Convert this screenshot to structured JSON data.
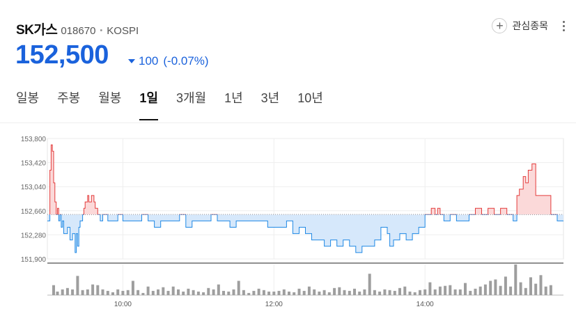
{
  "stock": {
    "name": "SK가스",
    "code": "018670",
    "market": "KOSPI",
    "price": "152,500",
    "change": "100",
    "change_pct": "(-0.07%)",
    "direction": "down"
  },
  "favorite_label": "관심종목",
  "tabs": [
    {
      "label": "일봉",
      "active": false
    },
    {
      "label": "주봉",
      "active": false
    },
    {
      "label": "월봉",
      "active": false
    },
    {
      "label": "1일",
      "active": true
    },
    {
      "label": "3개월",
      "active": false
    },
    {
      "label": "1년",
      "active": false
    },
    {
      "label": "3년",
      "active": false
    },
    {
      "label": "10년",
      "active": false
    }
  ],
  "colors": {
    "up": "#e33b3b",
    "down": "#1a62dc",
    "line_down": "#1e88e5"
  },
  "chart_data": {
    "type": "line",
    "baseline": 152600,
    "ylim": [
      151900,
      153800
    ],
    "y_ticks": [
      "153,800",
      "153,420",
      "153,040",
      "152,660",
      "152,280",
      "151,900"
    ],
    "x_ticks": [
      "10:00",
      "12:00",
      "14:00"
    ],
    "x_range_minutes": [
      540,
      950
    ],
    "price_series": {
      "times": [
        540,
        542,
        543,
        544,
        545,
        546,
        547,
        548,
        549,
        550,
        551,
        552,
        553,
        554,
        556,
        558,
        560,
        562,
        563,
        564,
        565,
        566,
        568,
        569,
        570,
        572,
        573,
        575,
        577,
        578,
        580,
        582,
        584,
        588,
        592,
        596,
        600,
        605,
        610,
        615,
        620,
        625,
        630,
        635,
        640,
        645,
        650,
        655,
        660,
        665,
        670,
        675,
        680,
        685,
        690,
        695,
        700,
        705,
        710,
        715,
        720,
        725,
        730,
        735,
        740,
        745,
        750,
        752,
        755,
        760,
        765,
        770,
        775,
        780,
        785,
        790,
        795,
        800,
        805,
        810,
        812,
        815,
        820,
        825,
        830,
        835,
        840,
        845,
        848,
        850,
        852,
        855,
        858,
        860,
        865,
        870,
        875,
        880,
        885,
        890,
        895,
        900,
        905,
        910,
        913,
        915,
        918,
        920,
        922,
        925,
        928,
        932,
        935,
        940,
        945,
        950
      ],
      "prices": [
        152500,
        153300,
        153700,
        153600,
        153100,
        152800,
        152600,
        152700,
        152500,
        152600,
        152400,
        152500,
        152300,
        152300,
        152400,
        152200,
        152300,
        152000,
        152300,
        152100,
        152400,
        152500,
        152600,
        152700,
        152800,
        152900,
        152800,
        152900,
        152800,
        152700,
        152600,
        152500,
        152600,
        152500,
        152500,
        152600,
        152500,
        152500,
        152500,
        152600,
        152500,
        152400,
        152500,
        152500,
        152500,
        152600,
        152400,
        152500,
        152500,
        152500,
        152600,
        152500,
        152500,
        152400,
        152500,
        152500,
        152500,
        152500,
        152500,
        152400,
        152400,
        152400,
        152500,
        152300,
        152400,
        152300,
        152200,
        152200,
        152200,
        152100,
        152200,
        152100,
        152200,
        152100,
        152000,
        152100,
        152100,
        152200,
        152400,
        152300,
        152100,
        152200,
        152300,
        152200,
        152300,
        152400,
        152600,
        152700,
        152600,
        152700,
        152600,
        152500,
        152500,
        152600,
        152500,
        152500,
        152600,
        152700,
        152600,
        152700,
        152600,
        152700,
        152600,
        152500,
        152900,
        153000,
        153200,
        153100,
        153300,
        153400,
        152900,
        152900,
        152900,
        152600,
        152500,
        152500
      ]
    },
    "volume_series": {
      "times": [
        545,
        548,
        552,
        556,
        560,
        564,
        568,
        572,
        576,
        580,
        584,
        588,
        592,
        596,
        600,
        604,
        608,
        612,
        616,
        620,
        624,
        628,
        632,
        636,
        640,
        644,
        648,
        652,
        656,
        660,
        664,
        668,
        672,
        676,
        680,
        684,
        688,
        692,
        696,
        700,
        704,
        708,
        712,
        716,
        720,
        724,
        728,
        732,
        736,
        740,
        744,
        748,
        752,
        756,
        760,
        764,
        768,
        772,
        776,
        780,
        784,
        788,
        792,
        796,
        800,
        804,
        808,
        812,
        816,
        820,
        824,
        828,
        832,
        836,
        840,
        844,
        848,
        852,
        856,
        860,
        864,
        868,
        872,
        876,
        880,
        884,
        888,
        892,
        896,
        900,
        904,
        908,
        912,
        916,
        920,
        924,
        928,
        932,
        936,
        940
      ],
      "values": [
        14,
        5,
        8,
        10,
        8,
        27,
        7,
        8,
        15,
        14,
        8,
        6,
        4,
        8,
        6,
        7,
        20,
        7,
        3,
        12,
        6,
        8,
        11,
        6,
        12,
        8,
        5,
        9,
        7,
        5,
        4,
        10,
        8,
        15,
        6,
        5,
        8,
        20,
        7,
        3,
        6,
        9,
        7,
        5,
        5,
        6,
        8,
        5,
        4,
        9,
        6,
        12,
        8,
        5,
        7,
        4,
        10,
        11,
        7,
        6,
        9,
        5,
        8,
        30,
        7,
        5,
        8,
        7,
        6,
        10,
        12,
        5,
        4,
        7,
        8,
        18,
        8,
        12,
        13,
        14,
        8,
        8,
        17,
        6,
        9,
        12,
        15,
        20,
        22,
        13,
        26,
        12,
        43,
        18,
        10,
        25,
        16,
        28,
        12,
        14
      ]
    }
  }
}
